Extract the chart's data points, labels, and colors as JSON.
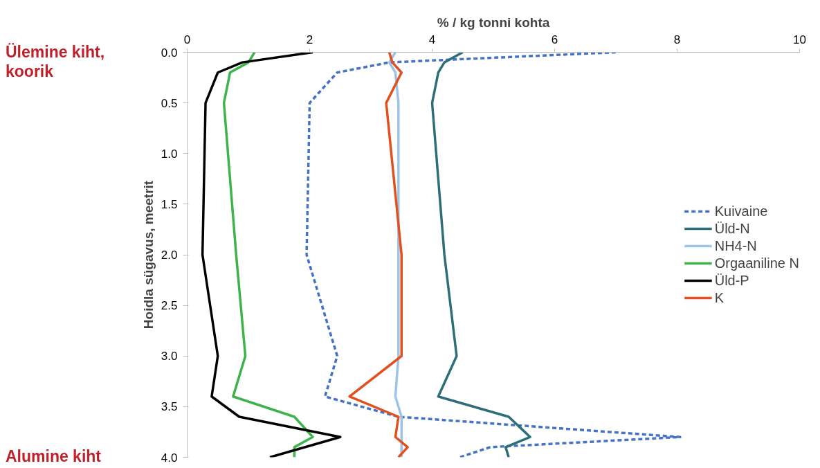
{
  "chart_data": {
    "type": "line",
    "xlabel": "% / kg tonni kohta",
    "ylabel": "Hoidla sügavus, meetrit",
    "xlim": [
      0,
      10
    ],
    "xticks": [
      0,
      2,
      4,
      6,
      8,
      10
    ],
    "ylim": [
      4,
      0
    ],
    "yticks": [
      {
        "value": 0,
        "label": "0.0"
      },
      {
        "value": 0.5,
        "label": "0.5"
      },
      {
        "value": 1,
        "label": "1.0"
      },
      {
        "value": 1.5,
        "label": "1.5"
      },
      {
        "value": 2,
        "label": "2.0"
      },
      {
        "value": 2.5,
        "label": "2.5"
      },
      {
        "value": 3,
        "label": "3.0"
      },
      {
        "value": 3.5,
        "label": "3.5"
      },
      {
        "value": 4,
        "label": "4.0"
      }
    ],
    "grid": false,
    "legend": "right",
    "marker": "none",
    "orientation": "horizontal",
    "annotations": [
      "Ülemine kiht, koorik",
      "Alumine kiht"
    ],
    "series": [
      {
        "name": "Kuivaine",
        "color": "#4472c4",
        "line_style": "dashed",
        "values": [
          7.0,
          3.3,
          2.45,
          2.0,
          1.95,
          2.45,
          2.25,
          3.45,
          8.05,
          4.95,
          4.45
        ],
        "x": [
          0,
          0.1,
          0.2,
          0.5,
          2.0,
          3.0,
          3.4,
          3.6,
          3.8,
          3.9,
          4.0
        ]
      },
      {
        "name": "Üld-N",
        "color": "#2e6e78",
        "line_style": "solid",
        "values": [
          4.5,
          4.2,
          4.1,
          4.0,
          4.2,
          4.4,
          4.1,
          5.25,
          5.6,
          5.2,
          5.25
        ],
        "x": [
          0,
          0.1,
          0.2,
          0.5,
          2.0,
          3.0,
          3.4,
          3.6,
          3.8,
          3.9,
          4.0
        ]
      },
      {
        "name": "NH4-N",
        "color": "#9dc3e6",
        "line_style": "solid",
        "values": [
          3.4,
          3.3,
          3.4,
          3.45,
          3.45,
          3.45,
          3.4,
          3.5,
          3.5,
          3.5,
          3.5
        ],
        "x": [
          0,
          0.1,
          0.2,
          0.5,
          2.0,
          3.0,
          3.4,
          3.6,
          3.8,
          3.9,
          4.0
        ]
      },
      {
        "name": "Orgaaniline N",
        "color": "#3cb44b",
        "line_style": "solid",
        "values": [
          1.1,
          1.0,
          0.7,
          0.6,
          0.8,
          0.95,
          0.75,
          1.75,
          2.05,
          1.75,
          1.75
        ],
        "x": [
          0,
          0.1,
          0.2,
          0.5,
          2.0,
          3.0,
          3.4,
          3.6,
          3.8,
          3.9,
          4.0
        ]
      },
      {
        "name": "Üld-P",
        "color": "#000000",
        "line_style": "solid",
        "values": [
          2.05,
          0.9,
          0.5,
          0.3,
          0.25,
          0.5,
          0.4,
          0.85,
          2.5,
          1.35
        ],
        "x": [
          0,
          0.1,
          0.2,
          0.5,
          2.0,
          3.0,
          3.4,
          3.6,
          3.8,
          4.0
        ]
      },
      {
        "name": "K",
        "color": "#e2501f",
        "line_style": "solid",
        "values": [
          3.3,
          3.35,
          3.5,
          3.25,
          3.5,
          3.5,
          2.65,
          3.45,
          3.4,
          3.6,
          3.45
        ],
        "x": [
          0,
          0.1,
          0.2,
          0.5,
          2.0,
          3.0,
          3.4,
          3.6,
          3.8,
          3.9,
          4.0
        ]
      }
    ]
  }
}
